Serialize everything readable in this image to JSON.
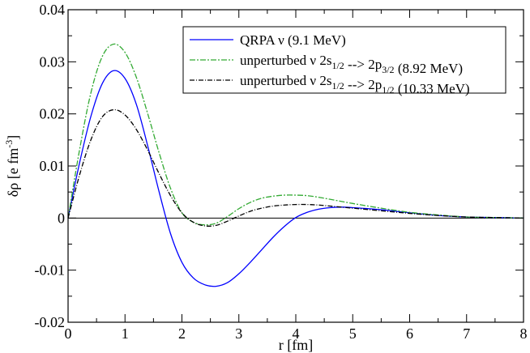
{
  "chart_data": {
    "type": "line",
    "title": "",
    "xlabel": "r [fm]",
    "ylabel": {
      "base": "δρ  [e fm",
      "sup": "-3",
      "close": "]"
    },
    "xlim": [
      0,
      8
    ],
    "ylim": [
      -0.02,
      0.04
    ],
    "x_ticks": [
      0,
      1,
      2,
      3,
      4,
      5,
      6,
      7,
      8
    ],
    "x_tick_labels": [
      "0",
      "1",
      "2",
      "3",
      "4",
      "5",
      "6",
      "7",
      "8"
    ],
    "y_ticks": [
      -0.02,
      -0.01,
      0,
      0.01,
      0.02,
      0.03,
      0.04
    ],
    "y_tick_labels": [
      "-0.02",
      "-0.01",
      "0",
      "0.01",
      "0.02",
      "0.03",
      "0.04"
    ],
    "legend_position": "top-right",
    "series": [
      {
        "name": "QRPA",
        "legend": [
          {
            "t": "QRPA  ν  (9.1 MeV)"
          }
        ],
        "color": "#0000ff",
        "dash": "",
        "points": [
          [
            0,
            0
          ],
          [
            0.2,
            0.0105
          ],
          [
            0.4,
            0.0195
          ],
          [
            0.6,
            0.0258
          ],
          [
            0.8,
            0.0283
          ],
          [
            1.0,
            0.0268
          ],
          [
            1.2,
            0.0218
          ],
          [
            1.4,
            0.0138
          ],
          [
            1.6,
            0.005
          ],
          [
            1.8,
            -0.003
          ],
          [
            2.0,
            -0.0085
          ],
          [
            2.2,
            -0.0115
          ],
          [
            2.4,
            -0.0128
          ],
          [
            2.6,
            -0.0131
          ],
          [
            2.8,
            -0.0124
          ],
          [
            3.0,
            -0.0107
          ],
          [
            3.2,
            -0.0085
          ],
          [
            3.4,
            -0.0061
          ],
          [
            3.6,
            -0.0037
          ],
          [
            3.8,
            -0.0016
          ],
          [
            4.0,
            0.0001
          ],
          [
            4.2,
            0.0011
          ],
          [
            4.4,
            0.0017
          ],
          [
            4.6,
            0.002
          ],
          [
            4.8,
            0.0021
          ],
          [
            5.0,
            0.002
          ],
          [
            5.5,
            0.0016
          ],
          [
            6.0,
            0.001
          ],
          [
            6.5,
            0.0005
          ],
          [
            7.0,
            0.0002
          ],
          [
            7.5,
            0.0001
          ],
          [
            8.0,
            0.0
          ]
        ]
      },
      {
        "name": "unperturbed 2s1/2 -> 2p3/2",
        "legend": [
          {
            "t": "unperturbed ν 2s"
          },
          {
            "t": "1/2",
            "sub": true
          },
          {
            "t": " --> 2p"
          },
          {
            "t": "3/2",
            "sub": true
          },
          {
            "t": " (8.92 MeV)"
          }
        ],
        "color": "#33aa33",
        "dash": "7,2,2,2",
        "points": [
          [
            0,
            0
          ],
          [
            0.2,
            0.013
          ],
          [
            0.4,
            0.024
          ],
          [
            0.6,
            0.031
          ],
          [
            0.8,
            0.0334
          ],
          [
            1.0,
            0.0318
          ],
          [
            1.2,
            0.027
          ],
          [
            1.4,
            0.02
          ],
          [
            1.6,
            0.0125
          ],
          [
            1.8,
            0.0057
          ],
          [
            2.0,
            0.001
          ],
          [
            2.2,
            -0.0008
          ],
          [
            2.4,
            -0.0013
          ],
          [
            2.6,
            -0.001
          ],
          [
            2.8,
            0.0003
          ],
          [
            3.0,
            0.0018
          ],
          [
            3.2,
            0.003
          ],
          [
            3.4,
            0.0038
          ],
          [
            3.6,
            0.0042
          ],
          [
            3.8,
            0.0044
          ],
          [
            4.0,
            0.0044
          ],
          [
            4.2,
            0.0043
          ],
          [
            4.4,
            0.004
          ],
          [
            4.6,
            0.0036
          ],
          [
            4.8,
            0.0032
          ],
          [
            5.0,
            0.0028
          ],
          [
            5.5,
            0.0019
          ],
          [
            6.0,
            0.0011
          ],
          [
            6.5,
            0.0006
          ],
          [
            7.0,
            0.0002
          ],
          [
            7.5,
            0.0001
          ],
          [
            8.0,
            0.0
          ]
        ]
      },
      {
        "name": "unperturbed 2s1/2 -> 2p1/2",
        "legend": [
          {
            "t": "unperturbed ν 2s"
          },
          {
            "t": "1/2",
            "sub": true
          },
          {
            "t": " --> 2p"
          },
          {
            "t": "1/2",
            "sub": true
          },
          {
            "t": " (10.33 MeV)"
          }
        ],
        "color": "#000000",
        "dash": "6,2,1,2",
        "points": [
          [
            0,
            0
          ],
          [
            0.2,
            0.0082
          ],
          [
            0.4,
            0.015
          ],
          [
            0.6,
            0.0194
          ],
          [
            0.8,
            0.0208
          ],
          [
            1.0,
            0.0198
          ],
          [
            1.2,
            0.017
          ],
          [
            1.4,
            0.013
          ],
          [
            1.6,
            0.0085
          ],
          [
            1.8,
            0.0043
          ],
          [
            2.0,
            0.001
          ],
          [
            2.2,
            -0.0008
          ],
          [
            2.4,
            -0.0015
          ],
          [
            2.6,
            -0.0014
          ],
          [
            2.8,
            -0.0006
          ],
          [
            3.0,
            0.0004
          ],
          [
            3.2,
            0.0013
          ],
          [
            3.4,
            0.0019
          ],
          [
            3.6,
            0.0023
          ],
          [
            3.8,
            0.0025
          ],
          [
            4.0,
            0.0026
          ],
          [
            4.2,
            0.0026
          ],
          [
            4.4,
            0.0025
          ],
          [
            4.6,
            0.0023
          ],
          [
            4.8,
            0.0021
          ],
          [
            5.0,
            0.0019
          ],
          [
            5.5,
            0.0014
          ],
          [
            6.0,
            0.0009
          ],
          [
            6.5,
            0.0005
          ],
          [
            7.0,
            0.0002
          ],
          [
            7.5,
            0.0001
          ],
          [
            8.0,
            0.0
          ]
        ]
      }
    ]
  }
}
